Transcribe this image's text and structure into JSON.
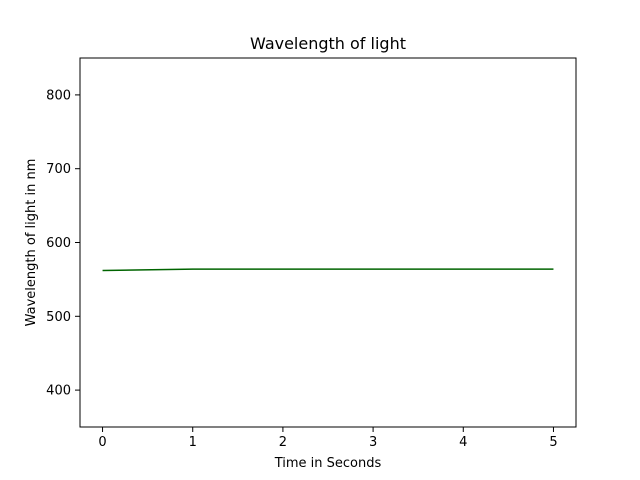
{
  "chart_data": {
    "type": "line",
    "title": "Wavelength of light",
    "xlabel": "Time in Seconds",
    "ylabel": "Wavelength of light in nm",
    "x": [
      0,
      1,
      2,
      3,
      4,
      5
    ],
    "series": [
      {
        "values": [
          562,
          564,
          564,
          564,
          564,
          564
        ],
        "color": "#006400"
      }
    ],
    "xlim": [
      -0.25,
      5.25
    ],
    "ylim": [
      350,
      850
    ],
    "xticks": [
      "0",
      "1",
      "2",
      "3",
      "4",
      "5"
    ],
    "yticks": [
      "400",
      "500",
      "600",
      "700",
      "800"
    ],
    "grid": false
  }
}
